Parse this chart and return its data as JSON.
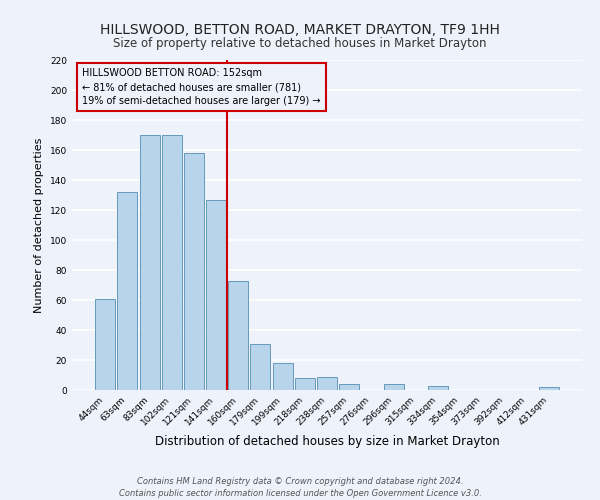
{
  "title": "HILLSWOOD, BETTON ROAD, MARKET DRAYTON, TF9 1HH",
  "subtitle": "Size of property relative to detached houses in Market Drayton",
  "xlabel": "Distribution of detached houses by size in Market Drayton",
  "ylabel": "Number of detached properties",
  "bar_labels": [
    "44sqm",
    "63sqm",
    "83sqm",
    "102sqm",
    "121sqm",
    "141sqm",
    "160sqm",
    "179sqm",
    "199sqm",
    "218sqm",
    "238sqm",
    "257sqm",
    "276sqm",
    "296sqm",
    "315sqm",
    "334sqm",
    "354sqm",
    "373sqm",
    "392sqm",
    "412sqm",
    "431sqm"
  ],
  "bar_values": [
    61,
    132,
    170,
    170,
    158,
    127,
    73,
    31,
    18,
    8,
    9,
    4,
    0,
    4,
    0,
    3,
    0,
    0,
    0,
    0,
    2
  ],
  "bar_color": "#b8d4ea",
  "bar_edge_color": "#6699bb",
  "property_line_x": 5.5,
  "property_line_color": "#cc0000",
  "annotation_title": "HILLSWOOD BETTON ROAD: 152sqm",
  "annotation_line1": "← 81% of detached houses are smaller (781)",
  "annotation_line2": "19% of semi-detached houses are larger (179) →",
  "annotation_box_color": "#cc0000",
  "ylim": [
    0,
    220
  ],
  "yticks": [
    0,
    20,
    40,
    60,
    80,
    100,
    120,
    140,
    160,
    180,
    200,
    220
  ],
  "footer_line1": "Contains HM Land Registry data © Crown copyright and database right 2024.",
  "footer_line2": "Contains public sector information licensed under the Open Government Licence v3.0.",
  "background_color": "#eef2fb",
  "grid_color": "#ffffff",
  "title_fontsize": 10,
  "subtitle_fontsize": 8.5,
  "xlabel_fontsize": 8.5,
  "ylabel_fontsize": 8,
  "tick_fontsize": 6.5,
  "footer_fontsize": 6,
  "ann_fontsize": 7,
  "ann_title_fontsize": 7.5
}
